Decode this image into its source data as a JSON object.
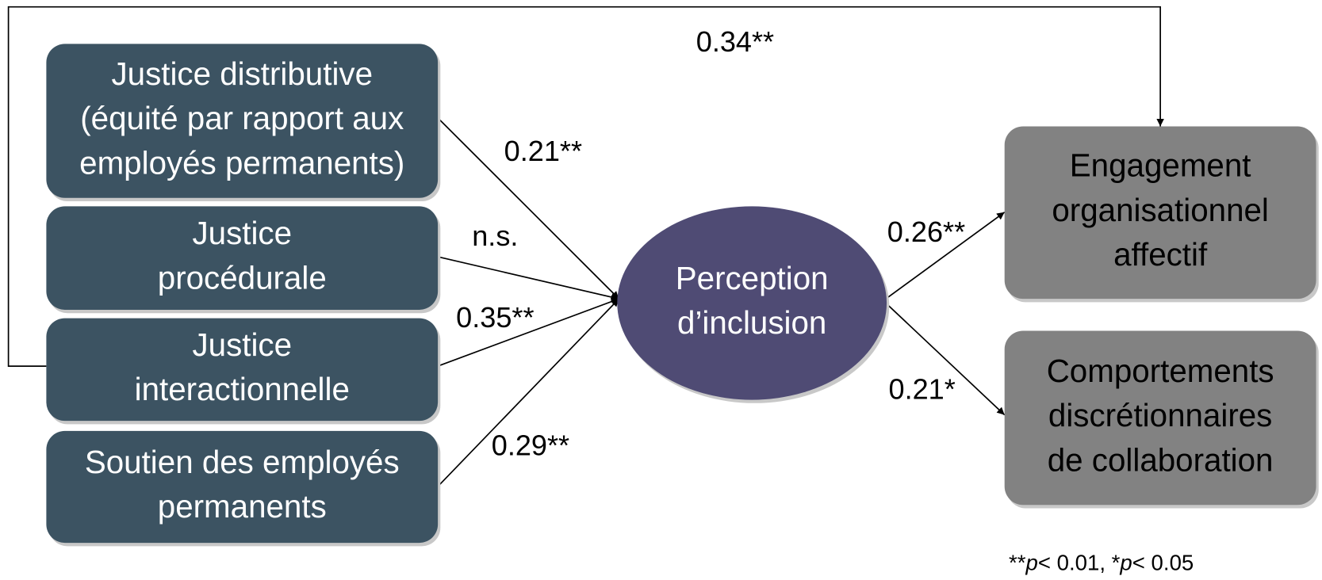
{
  "nodes": [
    {
      "lines": [
        "Justice distributive",
        "(équité par rapport aux",
        "employés permanents)"
      ]
    },
    {
      "lines": [
        "Justice",
        "procédurale"
      ]
    },
    {
      "lines": [
        "Justice",
        "interactionnelle"
      ]
    },
    {
      "lines": [
        "Soutien des employés",
        "permanents"
      ]
    },
    {
      "lines": [
        "Perception",
        "d’inclusion"
      ]
    },
    {
      "lines": [
        "Engagement",
        "organisationnel",
        "affectif"
      ]
    },
    {
      "lines": [
        "Comportements",
        "discrétionnaires",
        "de collaboration"
      ]
    }
  ],
  "edges": [
    {
      "label": "0.21**"
    },
    {
      "label": "n.s."
    },
    {
      "label": "0.35**"
    },
    {
      "label": "0.29**"
    },
    {
      "label": "0.26**"
    },
    {
      "label": "0.21*"
    },
    {
      "label": "0.34**"
    }
  ],
  "note": [
    "**",
    "p",
    "< 0.01, *",
    "p",
    "< 0.05"
  ]
}
